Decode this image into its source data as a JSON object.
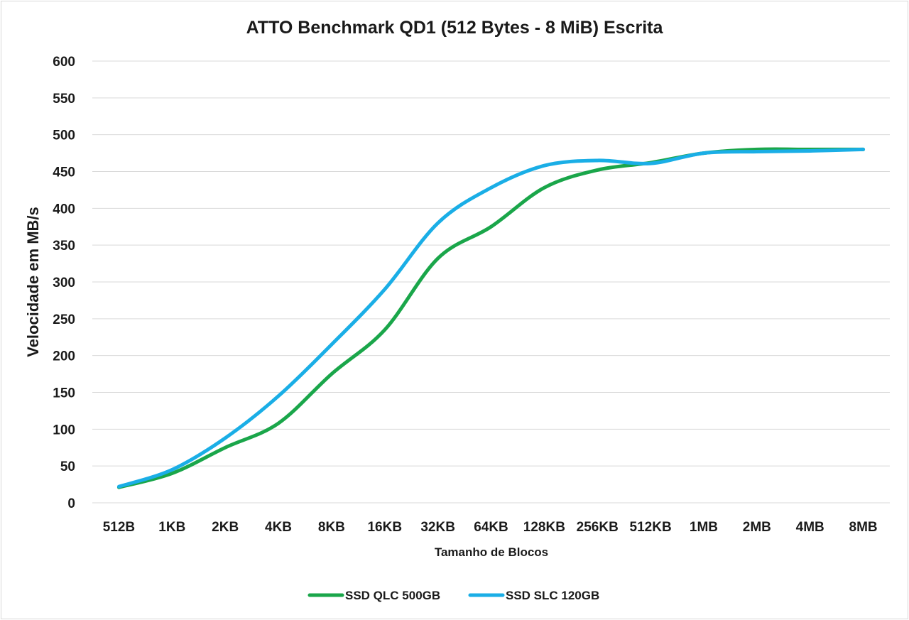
{
  "chart_data": {
    "type": "line",
    "title": "ATTO Benchmark QD1 (512 Bytes - 8 MiB) Escrita",
    "xlabel": "Tamanho de Blocos",
    "ylabel": "Velocidade em MB/s",
    "ylim": [
      0,
      600
    ],
    "yticks": [
      0,
      50,
      100,
      150,
      200,
      250,
      300,
      350,
      400,
      450,
      500,
      550,
      600
    ],
    "categories": [
      "512B",
      "1KB",
      "2KB",
      "4KB",
      "8KB",
      "16KB",
      "32KB",
      "64KB",
      "128KB",
      "256KB",
      "512KB",
      "1MB",
      "2MB",
      "4MB",
      "8MB"
    ],
    "grid": true,
    "legend_position": "bottom",
    "series": [
      {
        "name": "SSD QLC 500GB",
        "color": "#1aa64a",
        "values": [
          21,
          40,
          75,
          108,
          175,
          235,
          332,
          375,
          428,
          452,
          462,
          475,
          480,
          480,
          480
        ]
      },
      {
        "name": "SSD SLC 120GB",
        "color": "#1aaee6",
        "values": [
          22,
          45,
          88,
          145,
          215,
          290,
          380,
          428,
          458,
          465,
          461,
          475,
          477,
          478,
          480
        ]
      }
    ]
  }
}
